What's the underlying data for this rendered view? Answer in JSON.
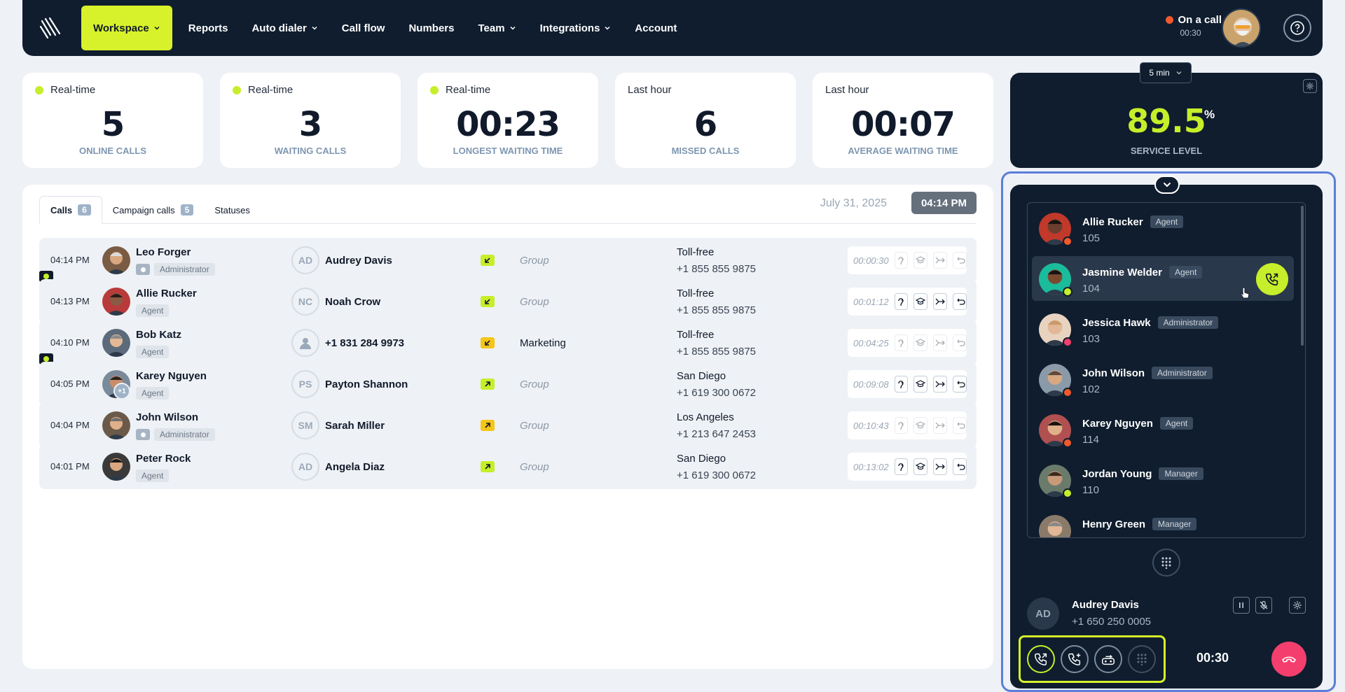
{
  "nav": {
    "items": [
      {
        "label": "Workspace",
        "dropdown": true,
        "active": true
      },
      {
        "label": "Reports",
        "dropdown": false
      },
      {
        "label": "Auto dialer",
        "dropdown": true
      },
      {
        "label": "Call flow",
        "dropdown": false
      },
      {
        "label": "Numbers",
        "dropdown": false
      },
      {
        "label": "Team",
        "dropdown": true
      },
      {
        "label": "Integrations",
        "dropdown": true
      },
      {
        "label": "Account",
        "dropdown": false
      }
    ],
    "status": "On a call",
    "status_time": "00:30"
  },
  "stats": [
    {
      "head": "Real-time",
      "live": true,
      "value": "5",
      "label": "ONLINE CALLS"
    },
    {
      "head": "Real-time",
      "live": true,
      "value": "3",
      "label": "WAITING CALLS"
    },
    {
      "head": "Real-time",
      "live": true,
      "value": "00:23",
      "label": "LONGEST WAITING TIME"
    },
    {
      "head": "Last hour",
      "live": false,
      "value": "6",
      "label": "MISSED CALLS"
    },
    {
      "head": "Last hour",
      "live": false,
      "value": "00:07",
      "label": "AVERAGE WAITING TIME"
    }
  ],
  "service": {
    "interval": "5 min",
    "value": "89.5",
    "unit": "%",
    "label": "SERVICE LEVEL"
  },
  "tabs": [
    {
      "label": "Calls",
      "count": "6"
    },
    {
      "label": "Campaign calls",
      "count": "5"
    },
    {
      "label": "Statuses",
      "count": ""
    }
  ],
  "date": "July 31, 2025",
  "time": "04:14 PM",
  "calls": [
    {
      "time": "04:14 PM",
      "agent": "Leo Forger",
      "role": "Administrator",
      "admin": true,
      "monitored": false,
      "caller_initials": "AD",
      "caller": "Audrey Davis",
      "direction": "in",
      "group": "Group",
      "line": "Toll-free",
      "number": "+1 855 855 9875",
      "duration": "00:00:30",
      "actions_enabled": false
    },
    {
      "time": "04:13 PM",
      "agent": "Allie Rucker",
      "role": "Agent",
      "admin": false,
      "monitored": true,
      "caller_initials": "NC",
      "caller": "Noah Crow",
      "direction": "in",
      "group": "Group",
      "line": "Toll-free",
      "number": "+1 855 855 9875",
      "duration": "00:01:12",
      "actions_enabled": true
    },
    {
      "time": "04:10 PM",
      "agent": "Bob Katz",
      "role": "Agent",
      "admin": false,
      "monitored": false,
      "caller_initials": "",
      "caller": "+1 831 284 9973",
      "direction": "in-alt",
      "group": "Marketing",
      "line": "Toll-free",
      "number": "+1 855 855 9875",
      "duration": "00:04:25",
      "actions_enabled": false
    },
    {
      "time": "04:05 PM",
      "agent": "Karey Nguyen",
      "role": "Agent",
      "admin": false,
      "monitored": true,
      "extra": "+1",
      "caller_initials": "PS",
      "caller": "Payton Shannon",
      "direction": "out",
      "group": "Group",
      "line": "San Diego",
      "number": "+1 619 300 0672",
      "duration": "00:09:08",
      "actions_enabled": true
    },
    {
      "time": "04:04 PM",
      "agent": "John Wilson",
      "role": "Administrator",
      "admin": true,
      "monitored": false,
      "caller_initials": "SM",
      "caller": "Sarah Miller",
      "direction": "out-alt",
      "group": "Group",
      "line": "Los Angeles",
      "number": "+1 213 647 2453",
      "duration": "00:10:43",
      "actions_enabled": false
    },
    {
      "time": "04:01 PM",
      "agent": "Peter Rock",
      "role": "Agent",
      "admin": false,
      "monitored": false,
      "caller_initials": "AD",
      "caller": "Angela Diaz",
      "direction": "out",
      "group": "Group",
      "line": "San Diego",
      "number": "+1 619 300 0672",
      "duration": "00:13:02",
      "actions_enabled": true
    }
  ],
  "agents": [
    {
      "name": "Allie Rucker",
      "role": "Agent",
      "ext": "105",
      "status_color": "#f0592d"
    },
    {
      "name": "Jasmine Welder",
      "role": "Agent",
      "ext": "104",
      "status_color": "#c6ee2a",
      "highlight": true
    },
    {
      "name": "Jessica Hawk",
      "role": "Administrator",
      "ext": "103",
      "status_color": "#f43f6e"
    },
    {
      "name": "John Wilson",
      "role": "Administrator",
      "ext": "102",
      "status_color": "#f0592d"
    },
    {
      "name": "Karey Nguyen",
      "role": "Agent",
      "ext": "114",
      "status_color": "#f0592d"
    },
    {
      "name": "Jordan Young",
      "role": "Manager",
      "ext": "110",
      "status_color": "#c6ee2a"
    },
    {
      "name": "Henry Green",
      "role": "Manager",
      "ext": "",
      "status_color": "#c6ee2a"
    }
  ],
  "current_call": {
    "initials": "AD",
    "name": "Audrey Davis",
    "number": "+1 650 250 0005",
    "timer": "00:30"
  },
  "colors": {
    "accent": "#d7f22a",
    "navy": "#0f1d2e",
    "hangup": "#f43f6e",
    "incoming": "#c6ee2a",
    "incoming_alt": "#f5c518",
    "frame": "#5b7ed9"
  }
}
